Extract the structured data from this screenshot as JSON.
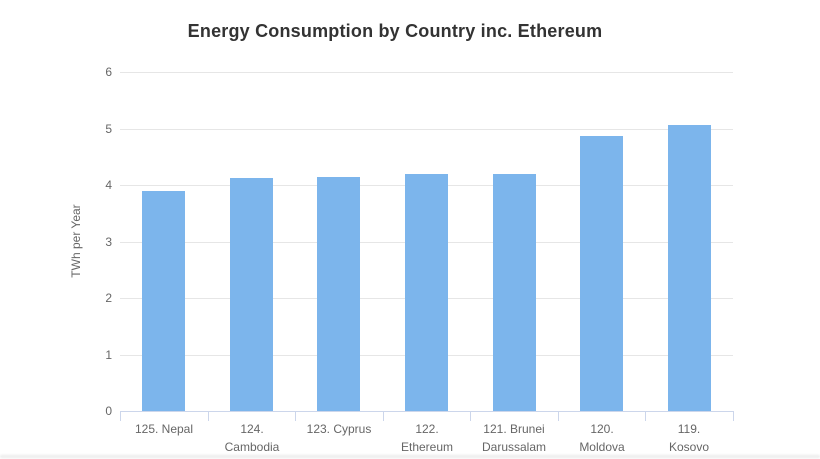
{
  "chart_data": {
    "type": "bar",
    "title": "Energy Consumption by Country inc. Ethereum",
    "ylabel": "TWh per Year",
    "xlabel": "",
    "ylim": [
      0,
      6
    ],
    "yticks": [
      0,
      1,
      2,
      3,
      4,
      5,
      6
    ],
    "grid": true,
    "legend": "none",
    "categories": [
      "125. Nepal",
      "124. Cambodia",
      "123. Cyprus",
      "122. Ethereum",
      "121. Brunei Darussalam",
      "120. Moldova",
      "119. Kosovo"
    ],
    "category_label_lines": [
      [
        "125. Nepal"
      ],
      [
        "124.",
        "Cambodia"
      ],
      [
        "123. Cyprus"
      ],
      [
        "122.",
        "Ethereum"
      ],
      [
        "121. Brunei",
        "Darussalam"
      ],
      [
        "120.",
        "Moldova"
      ],
      [
        "119.",
        "Kosovo"
      ]
    ],
    "values": [
      3.9,
      4.13,
      4.15,
      4.19,
      4.2,
      4.87,
      5.06
    ]
  },
  "colors": {
    "bar": "#7cb5ec",
    "grid_line": "#e6e6e6",
    "axis_line": "#ccd6eb",
    "tick_mark": "#ccd6eb",
    "axis_label": "#666666",
    "title": "#333333",
    "background": "#ffffff"
  }
}
